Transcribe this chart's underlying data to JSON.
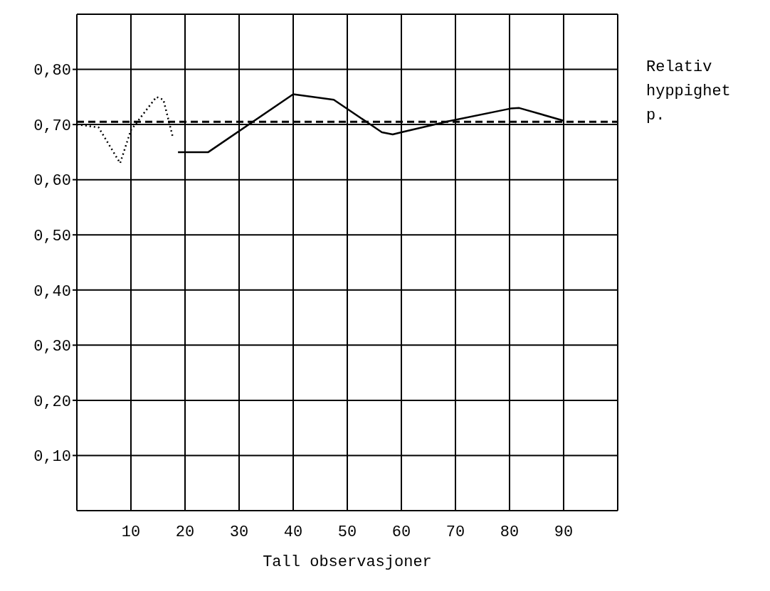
{
  "chart_data": {
    "type": "line",
    "xlabel": "Tall observasjoner",
    "ylabel": "Relativ hyppighet p.",
    "series": [
      {
        "color": "#000000",
        "line_style": "dotted",
        "x": [
          0,
          4,
          8,
          10,
          14.7,
          16,
          17.8
        ],
        "values": [
          0.7,
          0.695,
          0.63,
          0.69,
          0.75,
          0.745,
          0.675
        ]
      },
      {
        "color": "#000000",
        "line_style": "solid",
        "x": [
          18.7,
          24.3,
          40,
          47.5,
          56.4,
          58.4,
          60,
          68.7,
          80.2,
          81.8,
          90
        ],
        "values": [
          0.65,
          0.65,
          0.755,
          0.745,
          0.686,
          0.682,
          0.686,
          0.706,
          0.729,
          0.73,
          0.707
        ]
      }
    ],
    "ref_lines": [
      {
        "axis": "y",
        "value": 0.705,
        "line_style": "dashed",
        "color": "#000000"
      }
    ],
    "xlim": [
      0,
      100
    ],
    "xticks": [
      10,
      20,
      30,
      40,
      50,
      60,
      70,
      80,
      90
    ],
    "ylim": [
      0,
      0.9
    ],
    "yticks": [
      {
        "value": 0.1,
        "label": "0,10"
      },
      {
        "value": 0.2,
        "label": "0,20"
      },
      {
        "value": 0.3,
        "label": "0,30"
      },
      {
        "value": 0.4,
        "label": "0,40"
      },
      {
        "value": 0.5,
        "label": "0,50"
      },
      {
        "value": 0.6,
        "label": "0,60"
      },
      {
        "value": 0.7,
        "label": "0,70"
      },
      {
        "value": 0.8,
        "label": "0,80"
      }
    ],
    "grid": true,
    "marker": "none",
    "legend": false
  }
}
